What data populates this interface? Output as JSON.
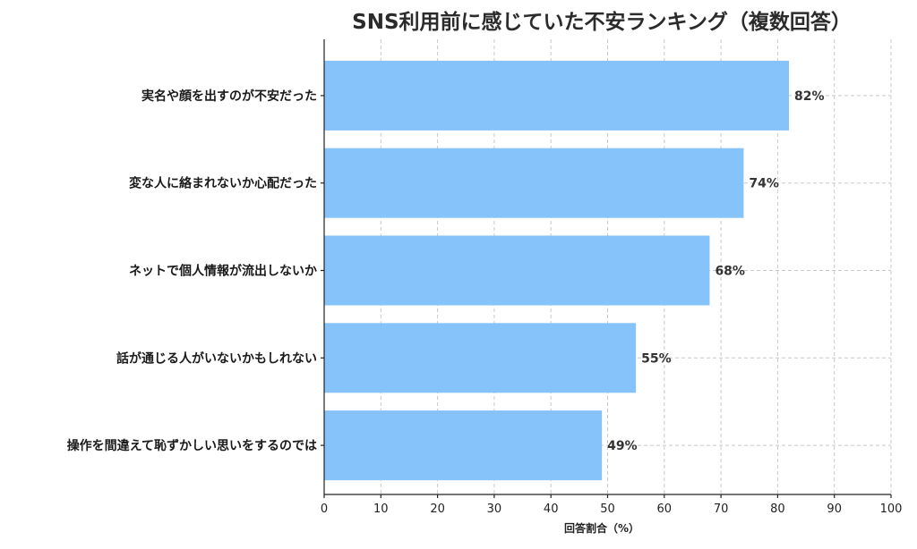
{
  "chart_data": {
    "type": "bar",
    "orientation": "horizontal",
    "title": "SNS利用前に感じていた不安ランキング（複数回答）",
    "xlabel": "回答割合（%）",
    "ylabel": "",
    "xlim": [
      0,
      100
    ],
    "xticks": [
      "0",
      "10",
      "20",
      "30",
      "40",
      "50",
      "60",
      "70",
      "80",
      "90",
      "100"
    ],
    "grid": true,
    "categories": [
      "実名や顔を出すのが不安だった",
      "変な人に絡まれないか心配だった",
      "ネットで個人情報が流出しないか",
      "話が通じる人がいないかもしれない",
      "操作を間違えて恥ずかしい思いをするのでは"
    ],
    "values": [
      82,
      74,
      68,
      55,
      49
    ],
    "value_labels": [
      "82%",
      "74%",
      "68%",
      "55%",
      "49%"
    ],
    "bar_color": "#86c3fb"
  }
}
